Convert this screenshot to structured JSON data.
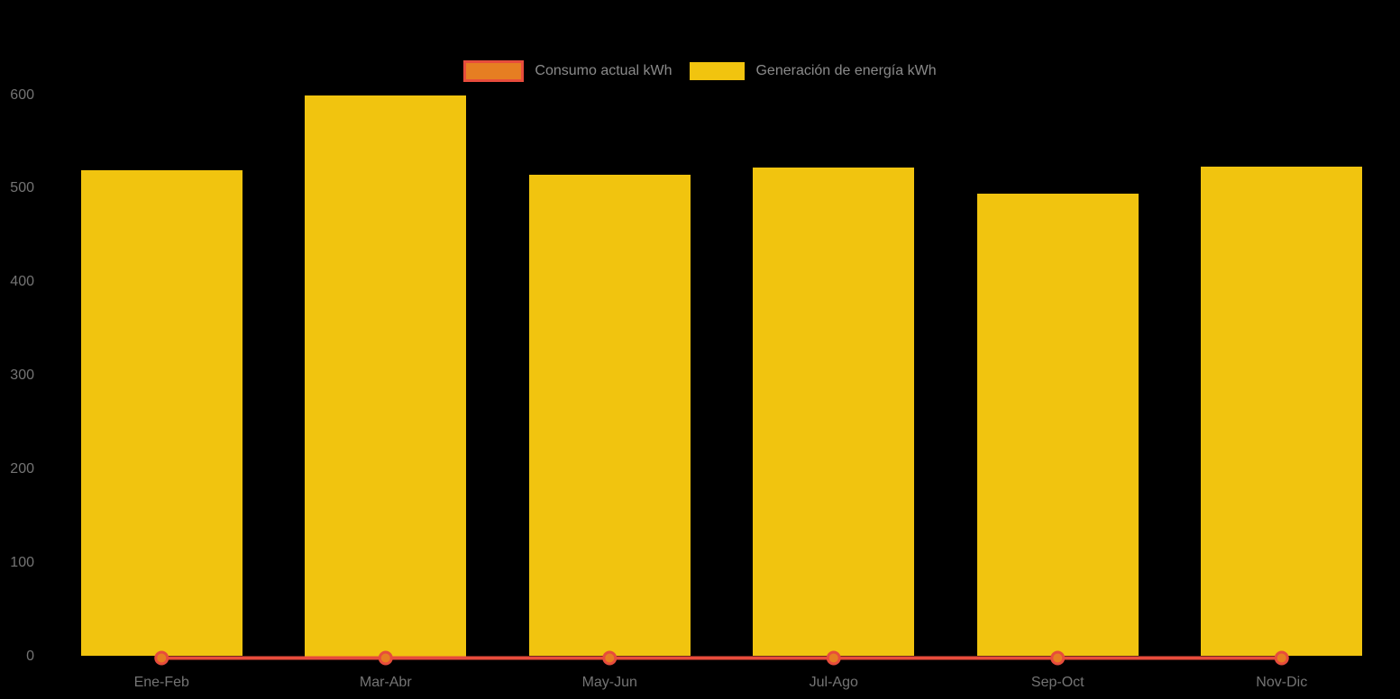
{
  "chart_data": {
    "type": "bar",
    "categories": [
      "Ene-Feb",
      "Mar-Abr",
      "May-Jun",
      "Jul-Ago",
      "Sep-Oct",
      "Nov-Dic"
    ],
    "series": [
      {
        "name": "Consumo actual kWh",
        "type": "line",
        "values": [
          0,
          0,
          0,
          0,
          0,
          0
        ],
        "color": "#e74c3c",
        "point_fill": "#e67e22"
      },
      {
        "name": "Generación de energía kWh",
        "type": "bar",
        "values": [
          520,
          600,
          515,
          522,
          495,
          523
        ],
        "color": "#f1c40f"
      }
    ],
    "ylim": [
      0,
      600
    ],
    "yticks": [
      0,
      100,
      200,
      300,
      400,
      500,
      600
    ],
    "grid": false,
    "legend_position": "top",
    "background": "#000000",
    "axis_text_color": "#747474",
    "legend_text_color": "#8a8a8a"
  }
}
